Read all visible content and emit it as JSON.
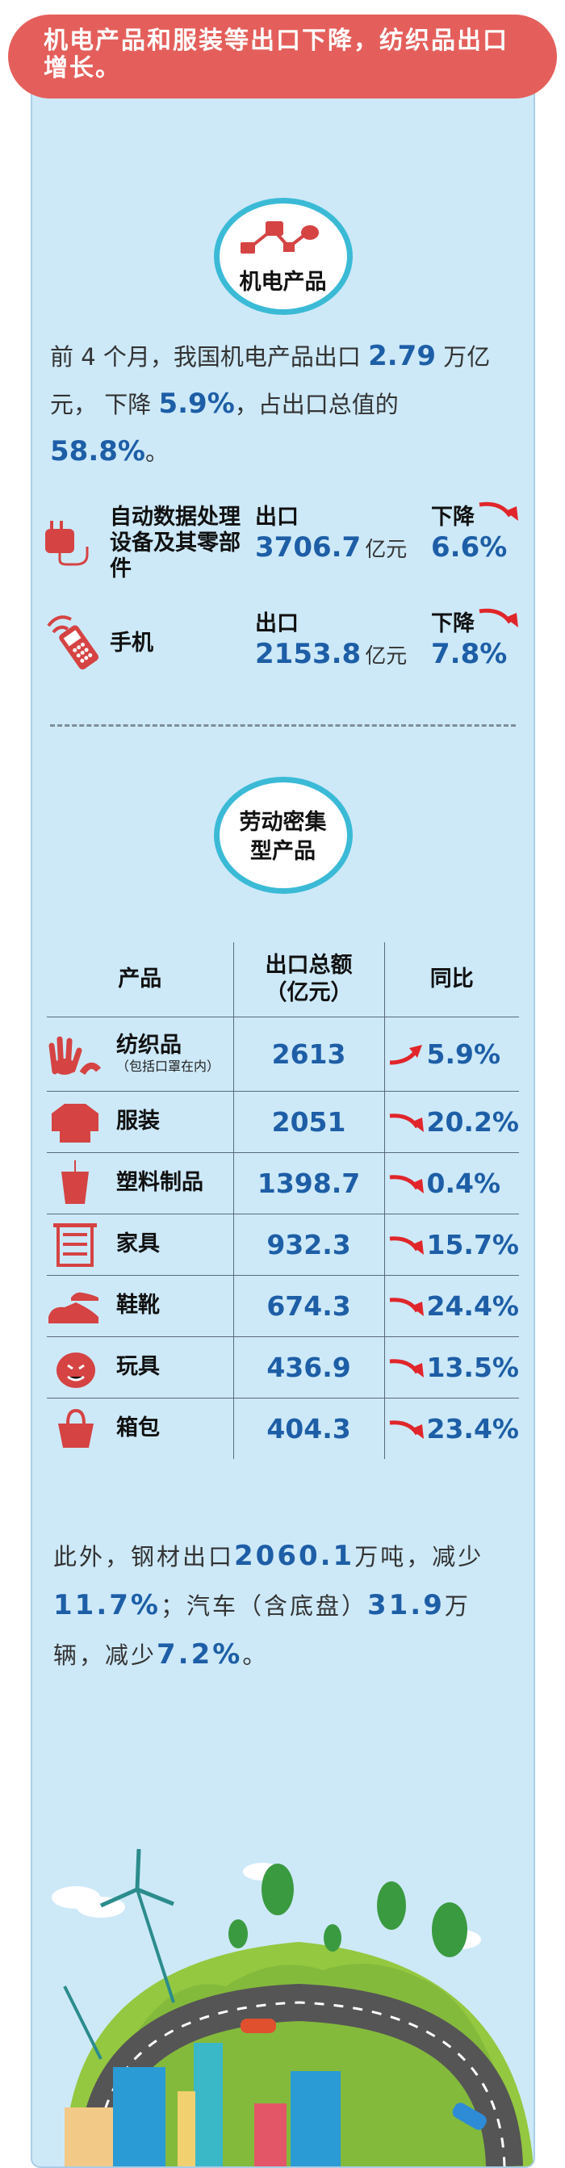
{
  "headline": "机电产品和服装等出口下降，纺织品出口增长。",
  "section1": {
    "badge": "机电产品",
    "summary": {
      "p1": "前 4 个月，我国机电产品出口",
      "v1": "2.79",
      "p2": "万亿元，",
      "p3": "下降",
      "v2": "5.9%",
      "p4": "，占出口总值的",
      "v3": "58.8%",
      "p5": "。"
    },
    "items": [
      {
        "icon": "power-plug-icon",
        "name": "自动数据处理设备及其零部件",
        "export_label": "出口",
        "value": "3706.7",
        "unit": "亿元",
        "change_label": "下降",
        "change": "6.6%",
        "trend": "down"
      },
      {
        "icon": "mobile-phone-icon",
        "name": "手机",
        "export_label": "出口",
        "value": "2153.8",
        "unit": "亿元",
        "change_label": "下降",
        "change": "7.8%",
        "trend": "down"
      }
    ]
  },
  "section2": {
    "badge": "劳动密集型产品",
    "table": {
      "headers": [
        "产品",
        "出口总额（亿元）",
        "同比"
      ],
      "rows": [
        {
          "icon": "hands-icon",
          "name": "纺织品",
          "note": "（包括口罩在内）",
          "value": "2613",
          "change": "5.9%",
          "trend": "up"
        },
        {
          "icon": "shirt-icon",
          "name": "服装",
          "value": "2051",
          "change": "20.2%",
          "trend": "down"
        },
        {
          "icon": "cup-icon",
          "name": "塑料制品",
          "value": "1398.7",
          "change": "0.4%",
          "trend": "down"
        },
        {
          "icon": "cabinet-icon",
          "name": "家具",
          "value": "932.3",
          "change": "15.7%",
          "trend": "down"
        },
        {
          "icon": "shoes-icon",
          "name": "鞋靴",
          "value": "674.3",
          "change": "24.4%",
          "trend": "down"
        },
        {
          "icon": "pumpkin-toy-icon",
          "name": "玩具",
          "value": "436.9",
          "change": "13.5%",
          "trend": "down"
        },
        {
          "icon": "bag-icon",
          "name": "箱包",
          "value": "404.3",
          "change": "23.4%",
          "trend": "down"
        }
      ]
    }
  },
  "footer": {
    "p1": "此外，钢材出口",
    "v1": "2060.1",
    "p2": "万吨，减少",
    "v2": "11.7%",
    "p3": "；汽车（含底盘）",
    "v3": "31.9",
    "p4": "万辆，减少",
    "v4": "7.2%",
    "p5": "。"
  },
  "colors": {
    "accent_red": "#e45f5b",
    "number_blue": "#1d5ea6",
    "panel_bg": "#cde9f8",
    "ring": "#3bbad6"
  }
}
